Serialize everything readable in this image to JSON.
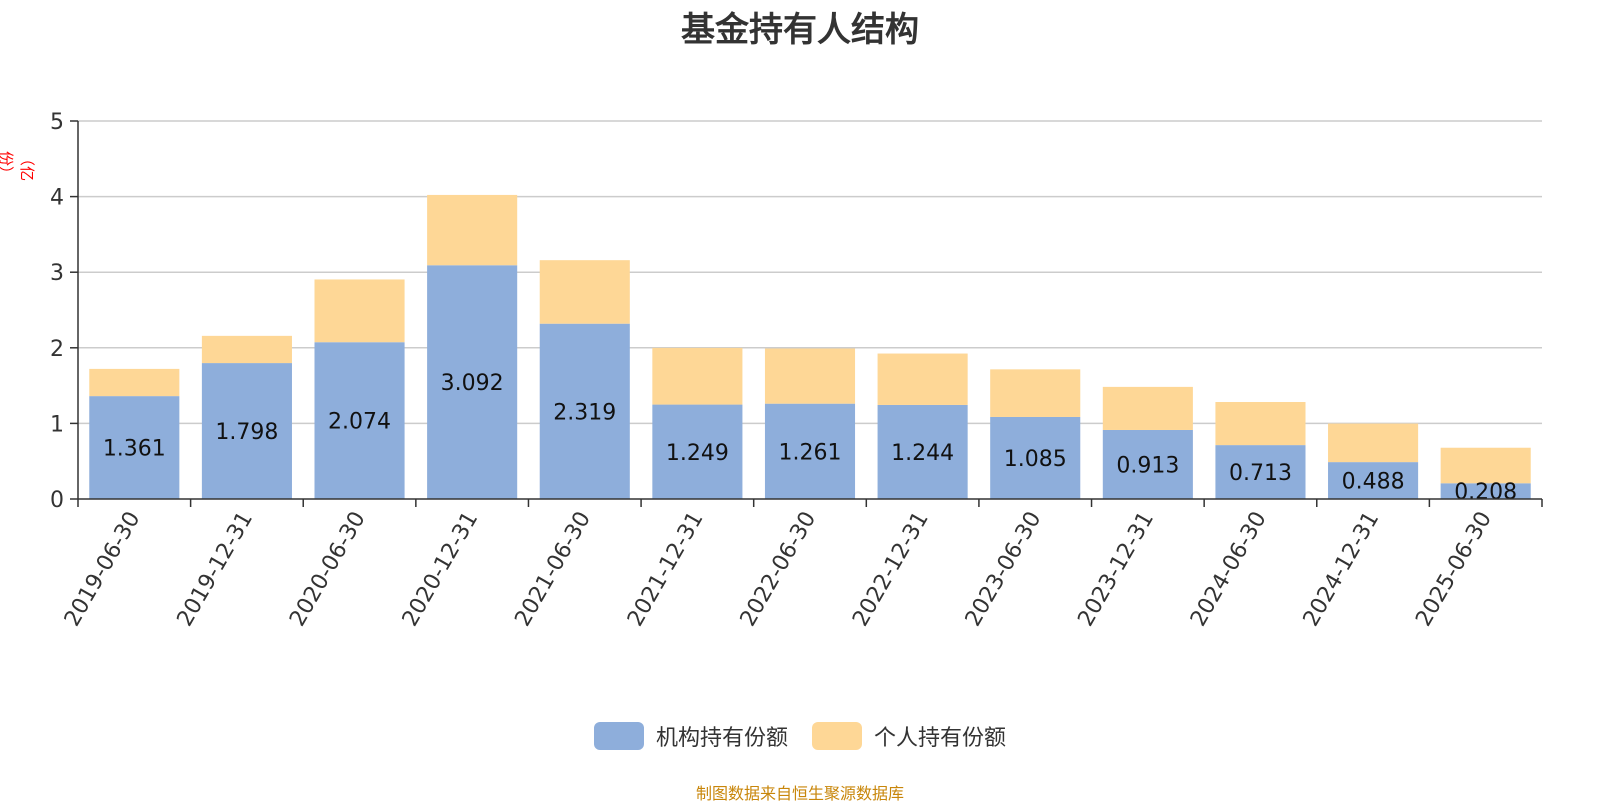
{
  "chart_data": {
    "type": "bar",
    "stacked": true,
    "title": "基金持有人结构",
    "y_unit": "（亿份）",
    "ylim": [
      0,
      5
    ],
    "yticks": [
      0,
      1,
      2,
      3,
      4,
      5
    ],
    "categories": [
      "2019-06-30",
      "2019-12-31",
      "2020-06-30",
      "2020-12-31",
      "2021-06-30",
      "2021-12-31",
      "2022-06-30",
      "2022-12-31",
      "2023-06-30",
      "2023-12-31",
      "2024-06-30",
      "2024-12-31",
      "2025-06-30"
    ],
    "series": [
      {
        "name": "机构持有份额",
        "color": "#8eaedb",
        "values": [
          1.361,
          1.798,
          2.074,
          3.092,
          2.319,
          1.249,
          1.261,
          1.244,
          1.085,
          0.913,
          0.713,
          0.488,
          0.208
        ],
        "labels": [
          "1.361",
          "1.798",
          "2.074",
          "3.092",
          "2.319",
          "1.249",
          "1.261",
          "1.244",
          "1.085",
          "0.913",
          "0.713",
          "0.488",
          "0.208"
        ]
      },
      {
        "name": "个人持有份额",
        "color": "#fed796",
        "values": [
          0.36,
          0.36,
          0.83,
          0.93,
          0.84,
          0.75,
          0.73,
          0.68,
          0.63,
          0.57,
          0.57,
          0.51,
          0.47
        ]
      }
    ],
    "grid": true,
    "legend_position": "bottom"
  },
  "source_note": "制图数据来自恒生聚源数据库"
}
